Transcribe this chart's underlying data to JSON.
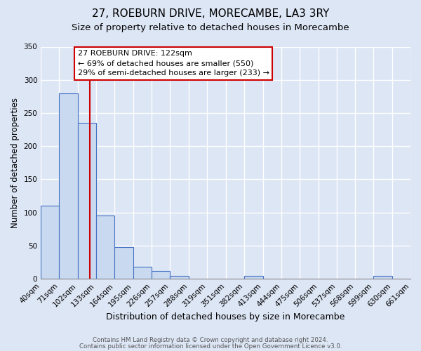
{
  "title": "27, ROEBURN DRIVE, MORECAMBE, LA3 3RY",
  "subtitle": "Size of property relative to detached houses in Morecambe",
  "xlabel": "Distribution of detached houses by size in Morecambe",
  "ylabel": "Number of detached properties",
  "bin_edges": [
    40,
    71,
    102,
    133,
    164,
    195,
    226,
    257,
    288,
    319,
    351,
    382,
    413,
    444,
    475,
    506,
    537,
    568,
    599,
    630,
    661
  ],
  "bin_labels": [
    "40sqm",
    "71sqm",
    "102sqm",
    "133sqm",
    "164sqm",
    "195sqm",
    "226sqm",
    "257sqm",
    "288sqm",
    "319sqm",
    "351sqm",
    "382sqm",
    "413sqm",
    "444sqm",
    "475sqm",
    "506sqm",
    "537sqm",
    "568sqm",
    "599sqm",
    "630sqm",
    "661sqm"
  ],
  "counts": [
    110,
    280,
    235,
    95,
    48,
    18,
    12,
    5,
    0,
    0,
    0,
    5,
    0,
    0,
    0,
    0,
    0,
    0,
    4,
    0
  ],
  "bar_color": "#c9d9f0",
  "bar_edge_color": "#4472c4",
  "bar_linewidth": 0.8,
  "vline_x": 122,
  "vline_color": "#cc0000",
  "vline_linewidth": 1.5,
  "ylim": [
    0,
    350
  ],
  "yticks": [
    0,
    50,
    100,
    150,
    200,
    250,
    300,
    350
  ],
  "annotation_text": "27 ROEBURN DRIVE: 122sqm\n← 69% of detached houses are smaller (550)\n29% of semi-detached houses are larger (233) →",
  "annotation_box_color": "white",
  "annotation_edge_color": "#cc0000",
  "annotation_fontsize": 8.0,
  "title_fontsize": 11,
  "subtitle_fontsize": 9.5,
  "xlabel_fontsize": 9,
  "ylabel_fontsize": 8.5,
  "tick_fontsize": 7.5,
  "footer_line1": "Contains HM Land Registry data © Crown copyright and database right 2024.",
  "footer_line2": "Contains public sector information licensed under the Open Government Licence v3.0.",
  "background_color": "#dde6f5",
  "plot_background_color": "#dde6f5",
  "grid_color": "white",
  "grid_linewidth": 1.0
}
